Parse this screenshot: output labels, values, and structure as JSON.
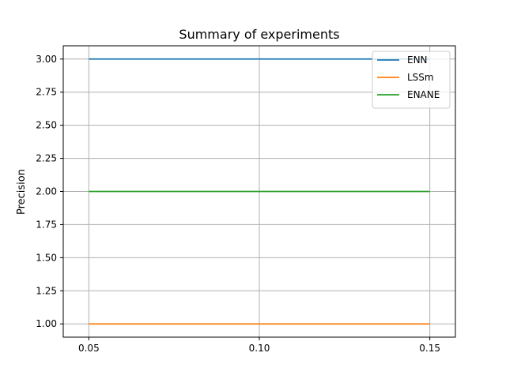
{
  "chart_data": {
    "type": "line",
    "title": "Summary of experiments",
    "xlabel": "",
    "ylabel": "Precision",
    "x": [
      0.05,
      0.1,
      0.15
    ],
    "x_ticks": [
      "0.05",
      "0.10",
      "0.15"
    ],
    "y_ticks": [
      "1.00",
      "1.25",
      "1.50",
      "1.75",
      "2.00",
      "2.25",
      "2.50",
      "2.75",
      "3.00"
    ],
    "xlim": [
      0.0425,
      0.1575
    ],
    "ylim": [
      0.9,
      3.1
    ],
    "grid": true,
    "legend_placement": "top-right",
    "series": [
      {
        "name": "ENN",
        "color": "#1f77b4",
        "values": [
          3.0,
          3.0,
          3.0
        ]
      },
      {
        "name": "LSSm",
        "color": "#ff7f0e",
        "values": [
          1.0,
          1.0,
          1.0
        ]
      },
      {
        "name": "ENANE",
        "color": "#2ca02c",
        "values": [
          2.0,
          2.0,
          2.0
        ]
      }
    ]
  }
}
